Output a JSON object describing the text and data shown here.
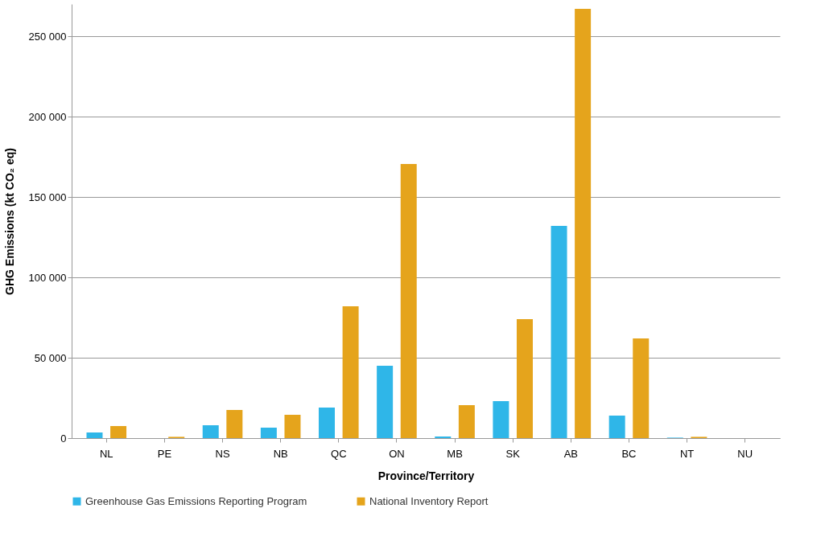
{
  "chart_data": {
    "type": "bar",
    "xlabel": "Province/Territory",
    "ylabel": "GHG Emissions (kt CO₂ eq)",
    "categories": [
      "NL",
      "PE",
      "NS",
      "NB",
      "QC",
      "ON",
      "MB",
      "SK",
      "AB",
      "BC",
      "NT",
      "NU"
    ],
    "series": [
      {
        "name": "Greenhouse Gas Emissions Reporting Program",
        "color": "#2fb6e8",
        "values": [
          3500,
          null,
          8000,
          6500,
          19000,
          45000,
          1000,
          23000,
          132000,
          14000,
          300,
          null
        ]
      },
      {
        "name": "National Inventory Report",
        "color": "#e5a41c",
        "values": [
          7500,
          800,
          17500,
          14500,
          82000,
          170500,
          20500,
          74000,
          267000,
          62000,
          800,
          null
        ]
      }
    ],
    "ylim": [
      0,
      270000
    ],
    "yticks": [
      {
        "value": 0,
        "label": "0"
      },
      {
        "value": 50000,
        "label": "50 000"
      },
      {
        "value": 100000,
        "label": "100 000"
      },
      {
        "value": 150000,
        "label": "150 000"
      },
      {
        "value": 200000,
        "label": "200 000"
      },
      {
        "value": 250000,
        "label": "250 000"
      }
    ],
    "grid": "y",
    "legend": "bottom"
  }
}
